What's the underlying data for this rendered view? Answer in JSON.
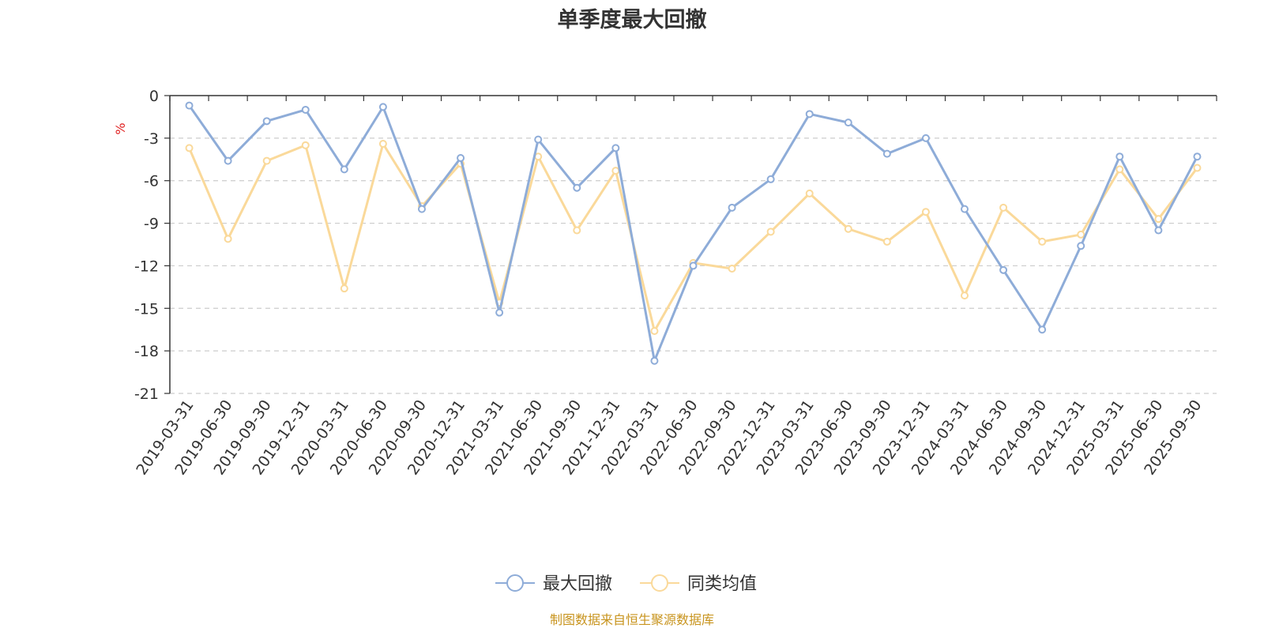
{
  "chart_data": {
    "type": "line",
    "title": "单季度最大回撤",
    "ylabel": "%",
    "ylim": [
      -21,
      0
    ],
    "yticks": [
      0,
      -3,
      -6,
      -9,
      -12,
      -15,
      -18,
      -21
    ],
    "grid": true,
    "legend_position": "bottom-center",
    "categories": [
      "2019-03-31",
      "2019-06-30",
      "2019-09-30",
      "2019-12-31",
      "2020-03-31",
      "2020-06-30",
      "2020-09-30",
      "2020-12-31",
      "2021-03-31",
      "2021-06-30",
      "2021-09-30",
      "2021-12-31",
      "2022-03-31",
      "2022-06-30",
      "2022-09-30",
      "2022-12-31",
      "2023-03-31",
      "2023-06-30",
      "2023-09-30",
      "2023-12-31",
      "2024-03-31",
      "2024-06-30",
      "2024-09-30",
      "2024-12-31",
      "2025-03-31",
      "2025-06-30",
      "2025-09-30"
    ],
    "series": [
      {
        "name": "最大回撤",
        "color": "#8eacd8",
        "values": [
          -0.7,
          -4.6,
          -1.8,
          -1.0,
          -5.2,
          -0.8,
          -8.0,
          -4.4,
          -15.3,
          -3.1,
          -6.5,
          -3.7,
          -18.7,
          -12.0,
          -7.9,
          -5.9,
          -1.3,
          -1.9,
          -4.1,
          -3.0,
          -8.0,
          -12.3,
          -16.5,
          -10.6,
          -4.3,
          -9.5,
          -4.3
        ]
      },
      {
        "name": "同类均值",
        "color": "#fad99a",
        "values": [
          -3.7,
          -10.1,
          -4.6,
          -3.5,
          -13.6,
          -3.4,
          -7.8,
          -4.8,
          -14.6,
          -4.3,
          -9.5,
          -5.3,
          -16.6,
          -11.8,
          -12.2,
          -9.6,
          -6.9,
          -9.4,
          -10.3,
          -8.2,
          -14.1,
          -7.9,
          -10.3,
          -9.8,
          -5.2,
          -8.7,
          -5.1
        ]
      }
    ]
  },
  "source_text": "制图数据来自恒生聚源数据库"
}
